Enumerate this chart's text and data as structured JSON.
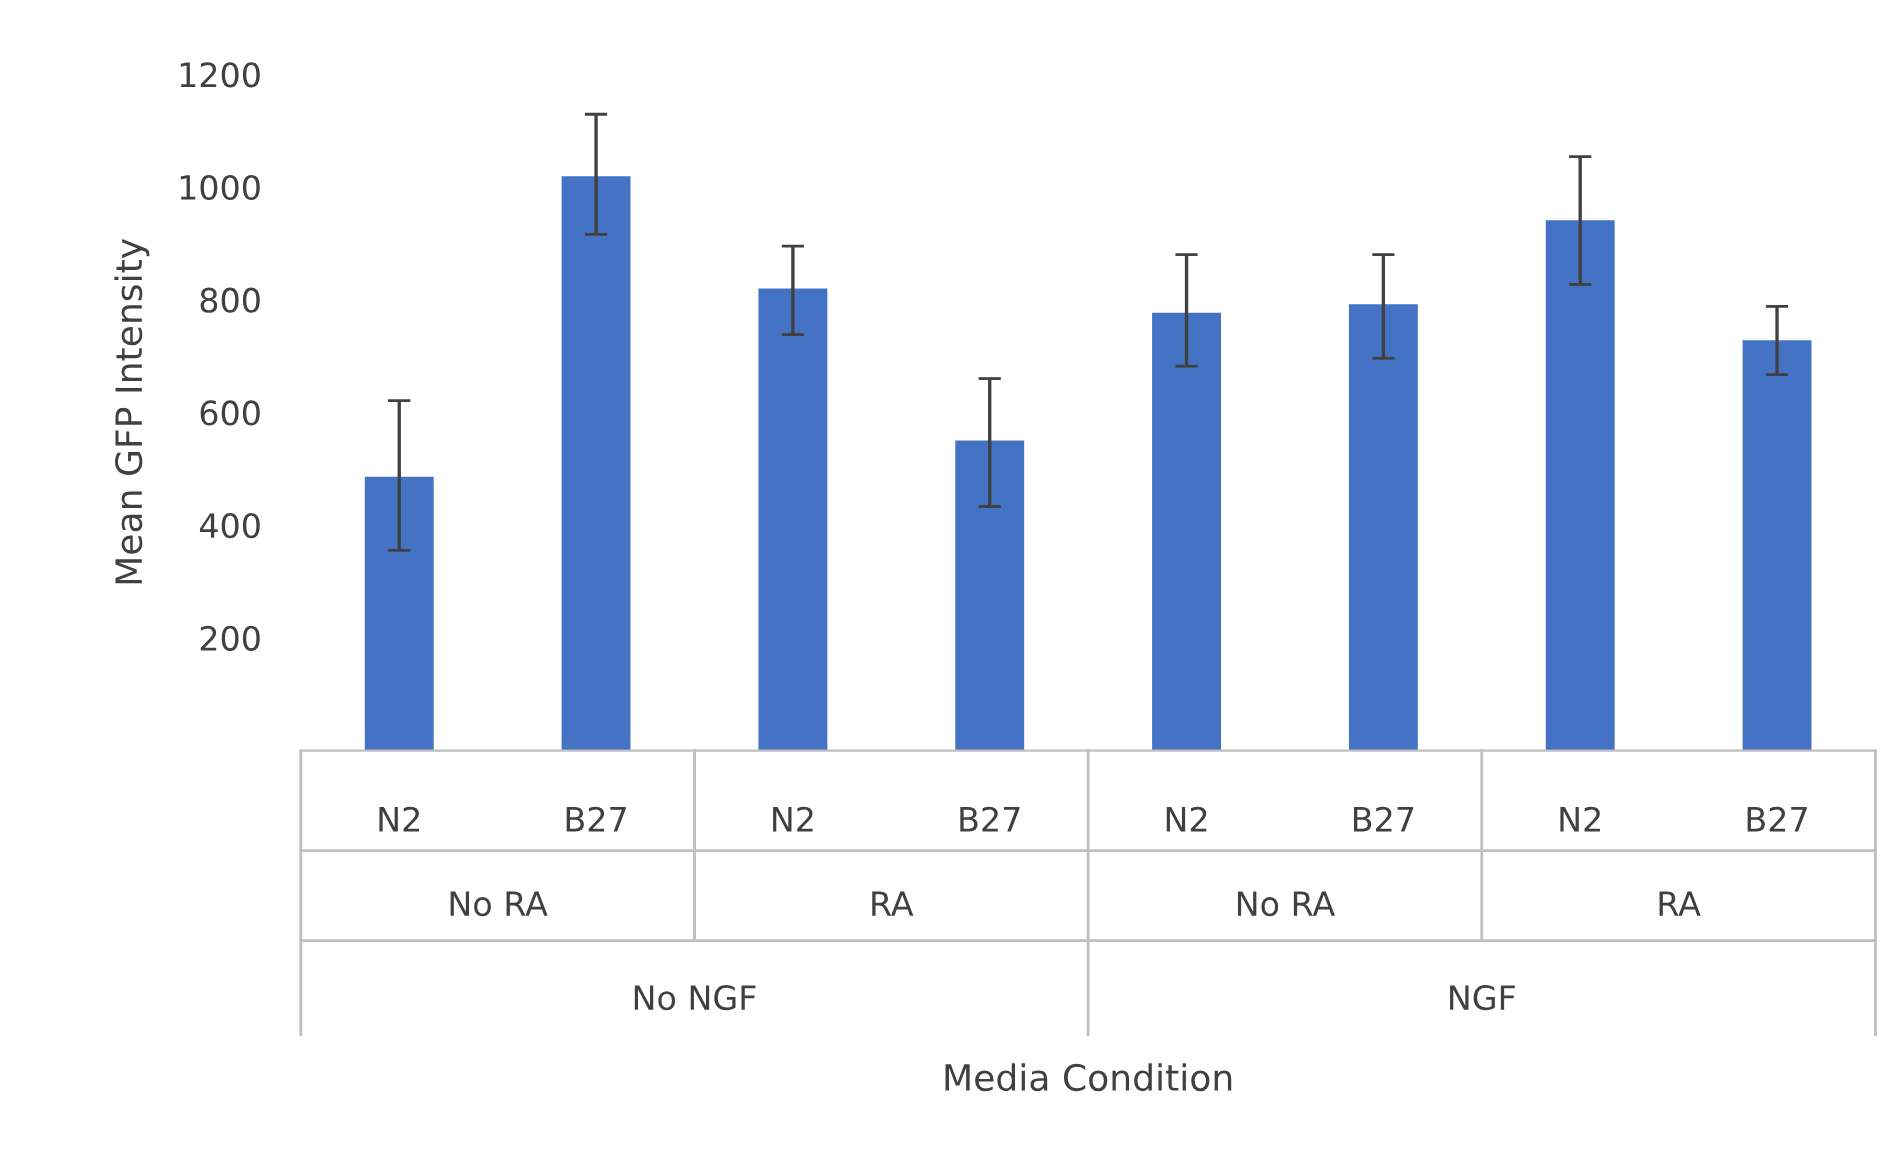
{
  "chart_data": {
    "type": "bar",
    "ylabel": "Mean GFP Intensity",
    "categories": [
      "N2",
      "B27",
      "N2",
      "B27",
      "N2",
      "B27",
      "N2",
      "B27"
    ],
    "values": [
      486,
      1019,
      820,
      550,
      777,
      792,
      941,
      728
    ],
    "errors": [
      [
        355,
        621
      ],
      [
        916,
        1129
      ],
      [
        738,
        895
      ],
      [
        433,
        660
      ],
      [
        682,
        880
      ],
      [
        696,
        880
      ],
      [
        827,
        1054
      ],
      [
        667,
        788
      ]
    ],
    "color": "#4472c4",
    "annotations": [
      "No RA",
      "RA",
      "No RA",
      "RA",
      "No NGF",
      "NGF",
      "Media Condition"
    ],
    "ylim": [
      0,
      1200
    ],
    "yticks": [
      200,
      400,
      600,
      800,
      1000,
      1200
    ],
    "grid": false
  }
}
